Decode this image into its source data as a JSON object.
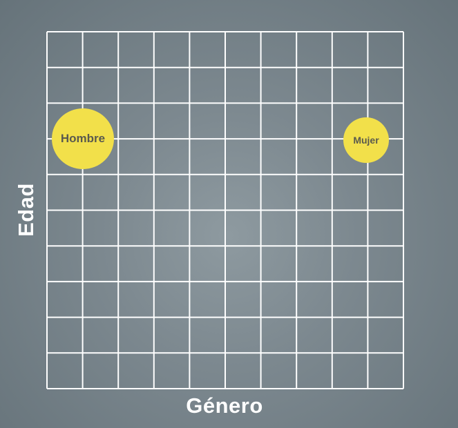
{
  "axes": {
    "x_label": "Género",
    "y_label": "Edad"
  },
  "grid": {
    "columns": 10,
    "rows": 10,
    "line_color": "#ffffff"
  },
  "markers": [
    {
      "label": "Hombre",
      "color": "#f2e04a"
    },
    {
      "label": "Mujer",
      "color": "#f2e04a"
    }
  ],
  "colors": {
    "background": "#7c888f",
    "marker_fill": "#f2e04a",
    "marker_text": "#5a5a4e"
  }
}
